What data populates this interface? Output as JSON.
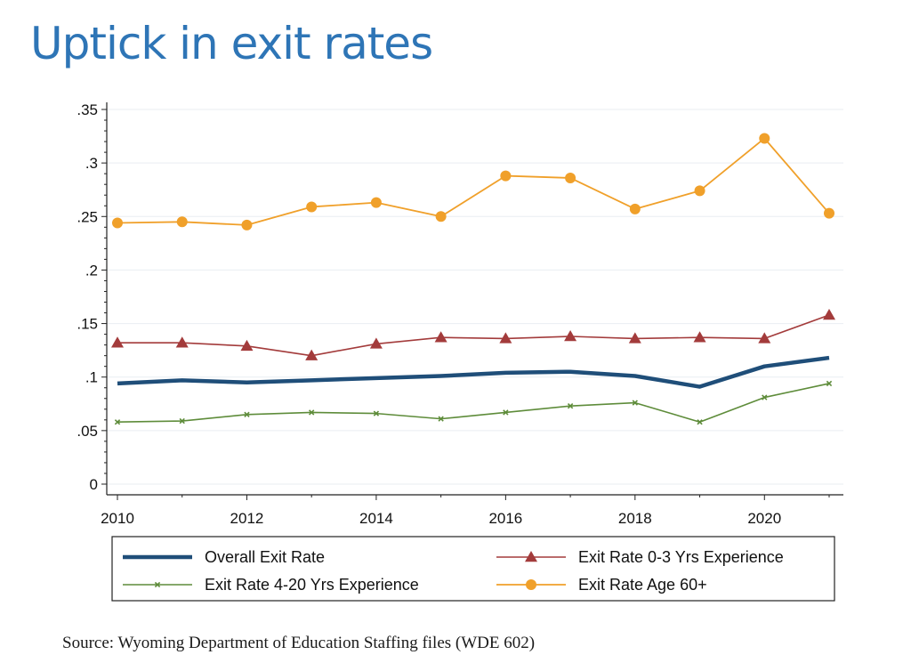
{
  "slide": {
    "title": "Uptick in exit rates",
    "source": "Source: Wyoming Department of Education Staffing files (WDE 602)"
  },
  "colors": {
    "title": "#2e75b6",
    "overall": "#1f4e79",
    "exp_0_3": "#a33b3b",
    "exp_4_20": "#5e8c3a",
    "age_60": "#f0a02a"
  },
  "chart_data": {
    "type": "line",
    "title": "",
    "xlabel": "",
    "ylabel": "",
    "x": [
      2010,
      2011,
      2012,
      2013,
      2014,
      2015,
      2016,
      2017,
      2018,
      2019,
      2020,
      2021
    ],
    "xlim": [
      2010,
      2021
    ],
    "ylim": [
      0,
      0.35
    ],
    "x_ticks": [
      2010,
      2012,
      2014,
      2016,
      2018,
      2020
    ],
    "x_tick_labels": [
      "2010",
      "2012",
      "2014",
      "2016",
      "2018",
      "2020"
    ],
    "y_ticks": [
      0,
      0.05,
      0.1,
      0.15,
      0.2,
      0.25,
      0.3,
      0.35
    ],
    "y_tick_labels": [
      "0",
      ".05",
      ".1",
      ".15",
      ".2",
      ".25",
      ".3",
      ".35"
    ],
    "grid": true,
    "legend_position": "bottom",
    "series": [
      {
        "name": "Overall Exit Rate",
        "marker": "none",
        "color_key": "overall",
        "values": [
          0.094,
          0.097,
          0.095,
          0.097,
          0.099,
          0.101,
          0.104,
          0.105,
          0.101,
          0.091,
          0.11,
          0.118
        ]
      },
      {
        "name": "Exit Rate 0-3 Yrs Experience",
        "marker": "triangle",
        "color_key": "exp_0_3",
        "values": [
          0.132,
          0.132,
          0.129,
          0.12,
          0.131,
          0.137,
          0.136,
          0.138,
          0.136,
          0.137,
          0.136,
          0.158
        ]
      },
      {
        "name": "Exit Rate 4-20 Yrs Experience",
        "marker": "x",
        "color_key": "exp_4_20",
        "values": [
          0.058,
          0.059,
          0.065,
          0.067,
          0.066,
          0.061,
          0.067,
          0.073,
          0.076,
          0.058,
          0.081,
          0.094
        ]
      },
      {
        "name": "Exit Rate Age 60+",
        "marker": "circle",
        "color_key": "age_60",
        "values": [
          0.244,
          0.245,
          0.242,
          0.259,
          0.263,
          0.25,
          0.288,
          0.286,
          0.257,
          0.274,
          0.323,
          0.253
        ]
      }
    ]
  }
}
